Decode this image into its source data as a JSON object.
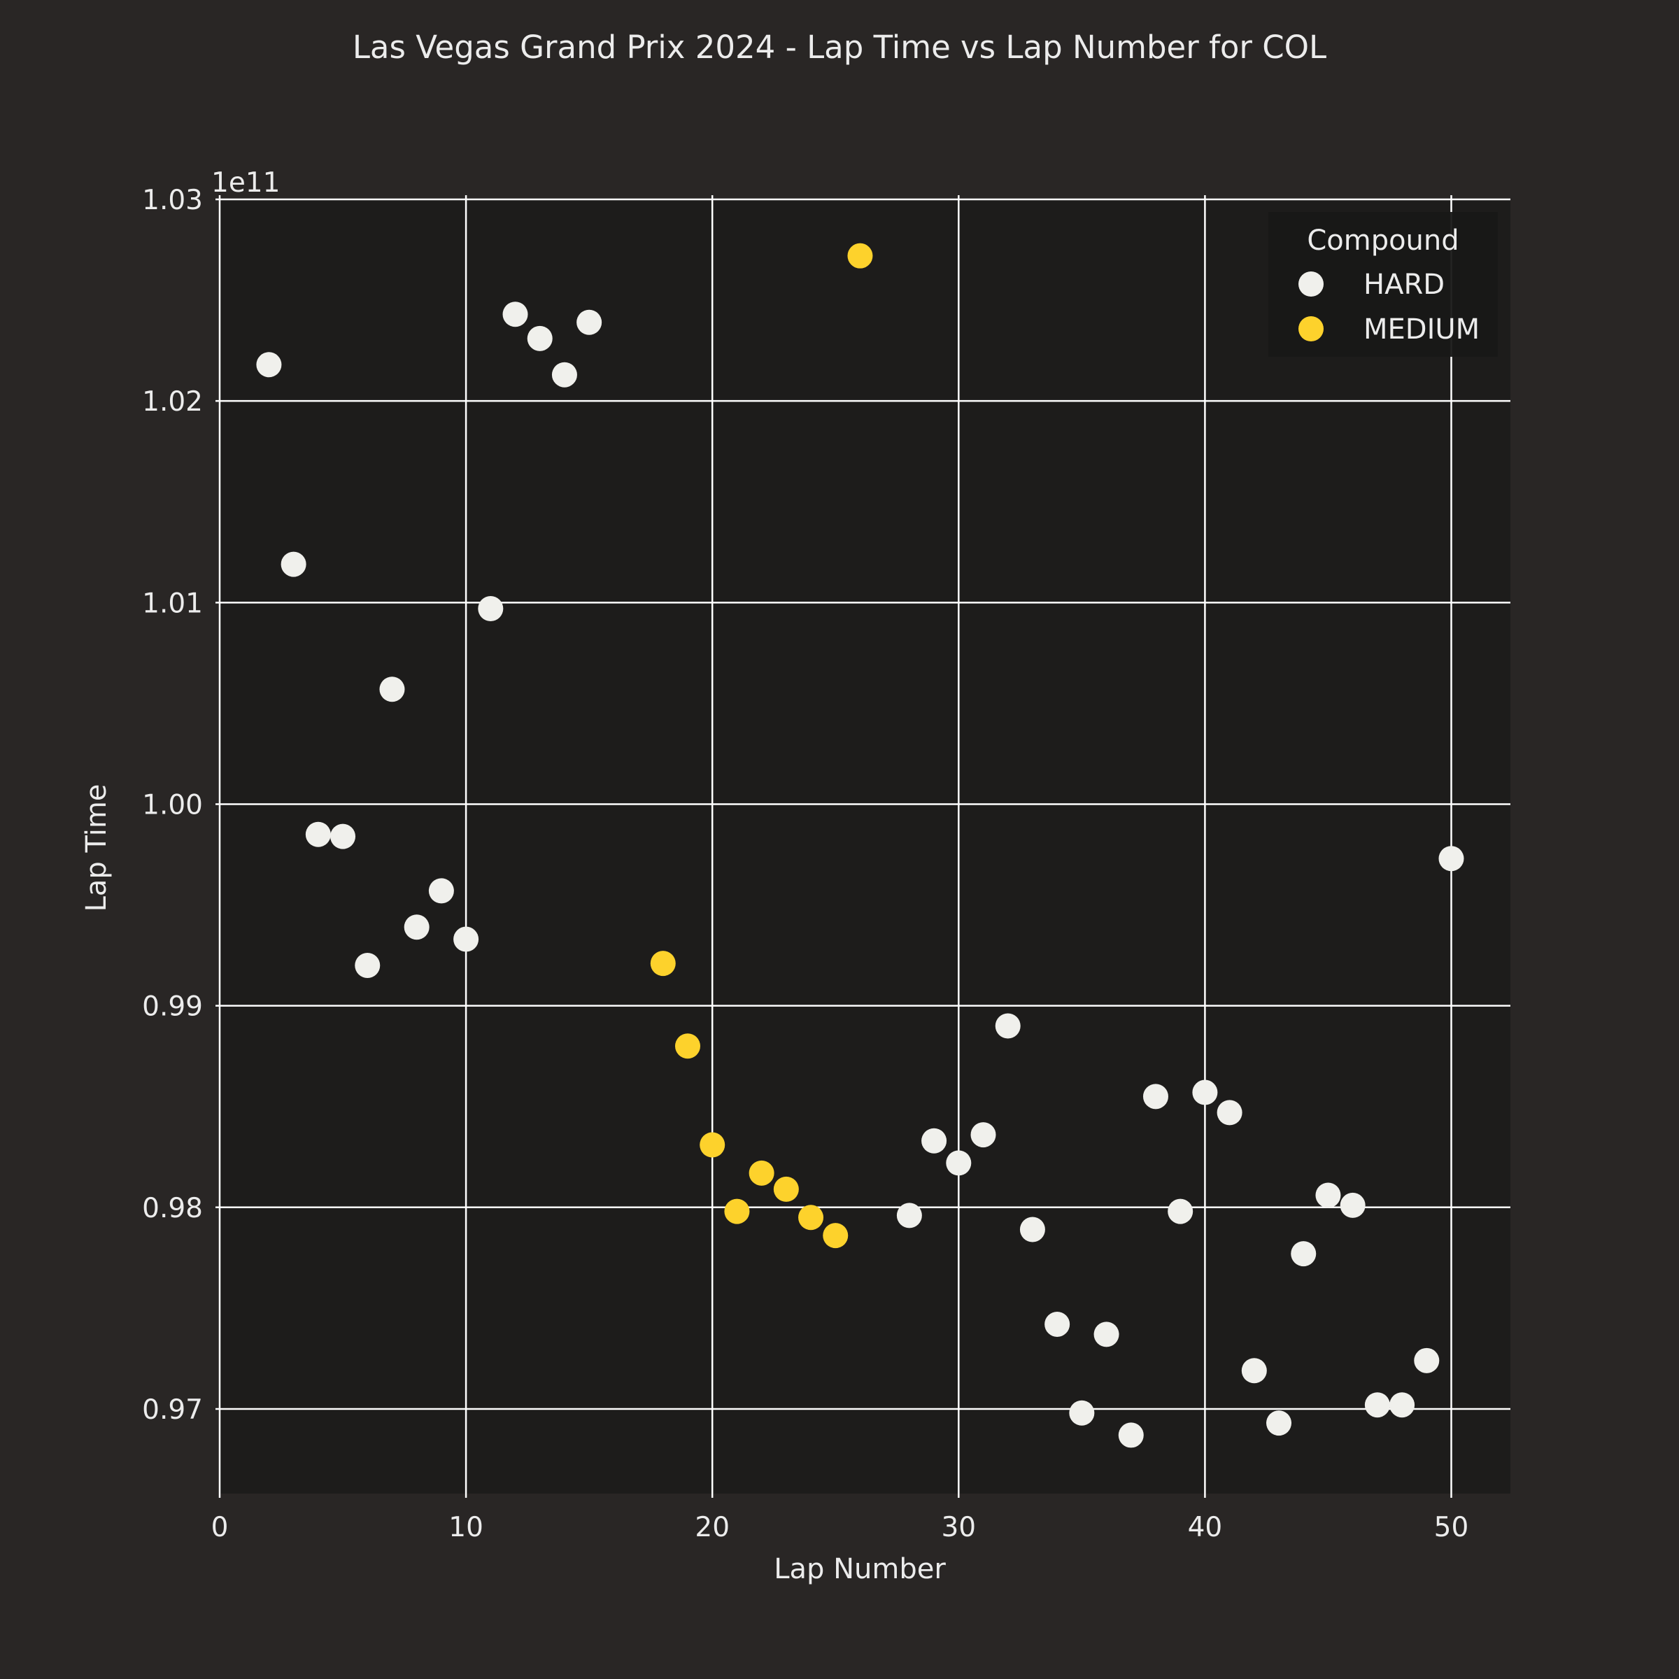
{
  "chart_data": {
    "type": "scatter",
    "title": "Las Vegas Grand Prix 2024 - Lap Time vs Lap Number for COL",
    "xlabel": "Lap Number",
    "ylabel": "Lap Time",
    "y_offset_label": "1e11",
    "xlim": [
      0,
      52.4
    ],
    "ylim": [
      0.9658,
      1.03
    ],
    "x_ticks": [
      0,
      10,
      20,
      30,
      40,
      50
    ],
    "x_tick_labels": [
      "0",
      "10",
      "20",
      "30",
      "40",
      "50"
    ],
    "y_ticks": [
      0.97,
      0.98,
      0.99,
      1.0,
      1.01,
      1.02,
      1.03
    ],
    "y_tick_labels": [
      "0.97",
      "0.98",
      "0.99",
      "1.00",
      "1.01",
      "1.02",
      "1.03"
    ],
    "grid": true,
    "legend": {
      "title": "Compound",
      "placement": "top-right"
    },
    "colors": {
      "figure_background": "#292625",
      "plot_background": "#1D1C1B",
      "grid": "#FFFFFF",
      "text": "#ECECEC",
      "legend_background": "#181817"
    },
    "series": [
      {
        "name": "HARD",
        "color": "#F0F0EC",
        "points": [
          [
            2,
            1.0218
          ],
          [
            3,
            1.0119
          ],
          [
            4,
            0.9985
          ],
          [
            5,
            0.9984
          ],
          [
            6,
            0.992
          ],
          [
            7,
            1.0057
          ],
          [
            8,
            0.9939
          ],
          [
            9,
            0.9957
          ],
          [
            10,
            0.9933
          ],
          [
            11,
            1.0097
          ],
          [
            12,
            1.0243
          ],
          [
            13,
            1.0231
          ],
          [
            14,
            1.0213
          ],
          [
            15,
            1.0239
          ],
          [
            28,
            0.9796
          ],
          [
            29,
            0.9833
          ],
          [
            30,
            0.9822
          ],
          [
            31,
            0.9836
          ],
          [
            32,
            0.989
          ],
          [
            33,
            0.9789
          ],
          [
            34,
            0.9742
          ],
          [
            35,
            0.9698
          ],
          [
            36,
            0.9737
          ],
          [
            37,
            0.9687
          ],
          [
            38,
            0.9855
          ],
          [
            39,
            0.9798
          ],
          [
            40,
            0.9857
          ],
          [
            41,
            0.9847
          ],
          [
            42,
            0.9719
          ],
          [
            43,
            0.9693
          ],
          [
            44,
            0.9777
          ],
          [
            45,
            0.9806
          ],
          [
            46,
            0.9801
          ],
          [
            47,
            0.9702
          ],
          [
            48,
            0.9702
          ],
          [
            49,
            0.9724
          ],
          [
            50,
            0.9973
          ]
        ]
      },
      {
        "name": "MEDIUM",
        "color": "#FDD22C",
        "points": [
          [
            18,
            0.9921
          ],
          [
            19,
            0.988
          ],
          [
            20,
            0.9831
          ],
          [
            21,
            0.9798
          ],
          [
            22,
            0.9817
          ],
          [
            23,
            0.9809
          ],
          [
            24,
            0.9795
          ],
          [
            25,
            0.9786
          ],
          [
            26,
            1.0272
          ]
        ]
      }
    ]
  }
}
